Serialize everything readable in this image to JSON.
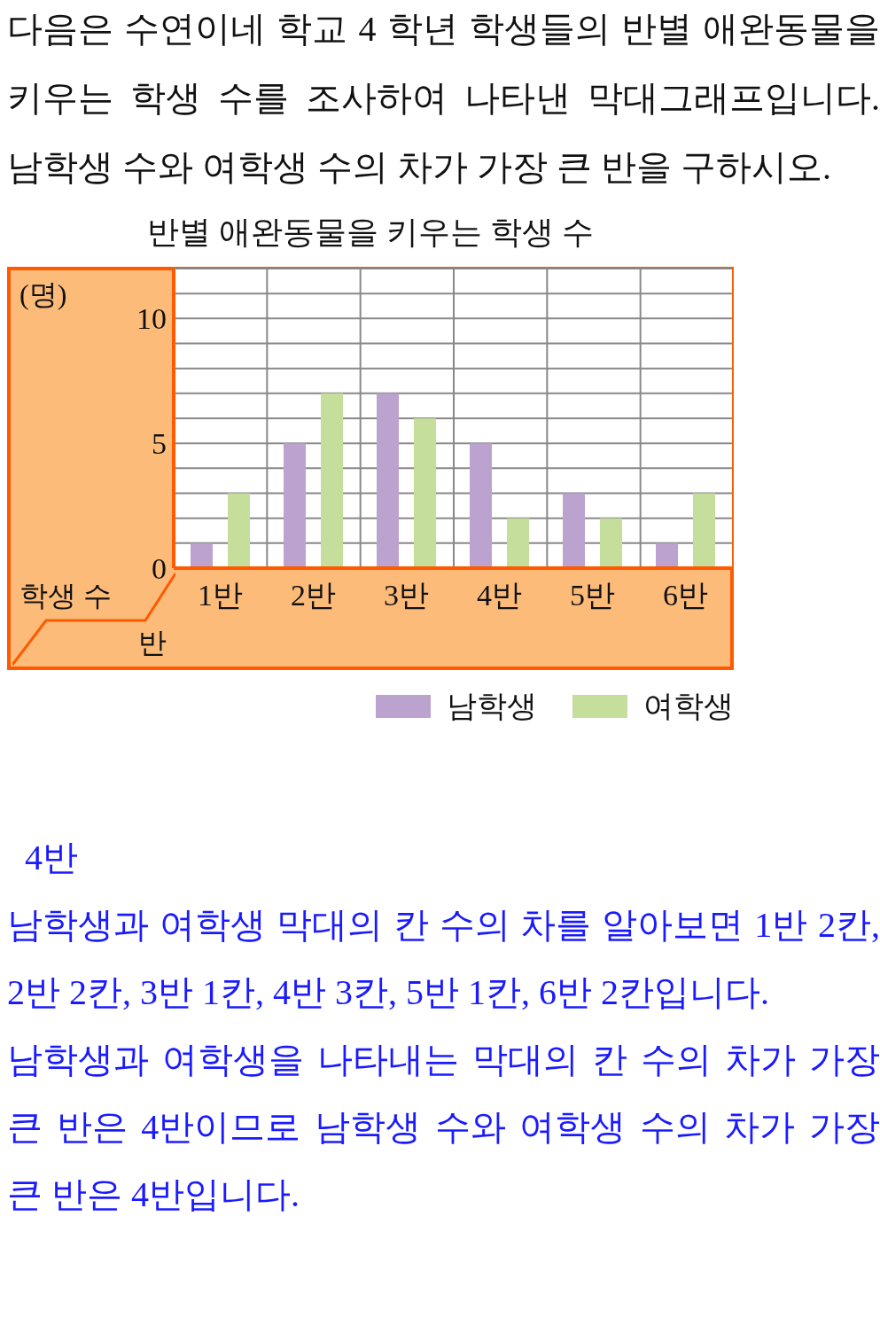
{
  "chart_data": {
    "type": "bar",
    "title": "반별 애완동물을 키우는 학생 수",
    "ylabel": "(명)",
    "xlabel": "반",
    "annotations": [
      "다음은 수연이네 학교 4 학년 학생들의 반별 애완동물을 키우는 학생 수를 조사하여 나타낸 막대그래프입니다. 남학생 수와 여학생 수의 차가 가장 큰 반을 구하시오.",
      "학생 수",
      "4반",
      "남학생과 여학생 막대의 칸 수의 차를 알아보면 1반 2칸, 2반 2칸, 3반 1칸, 4반 3칸, 5반 1칸, 6반 2칸입니다.",
      "남학생과 여학생을 나타내는 막대의 칸 수의 차가 가장 큰 반은 4반이므로 남학생 수와 여학생 수의 차가 가장 큰 반은 4반입니다."
    ],
    "categories": [
      "1반",
      "2반",
      "3반",
      "4반",
      "5반",
      "6반"
    ],
    "series": [
      {
        "name": "남학생",
        "color": "#bba2cf",
        "values": [
          1,
          5,
          7,
          5,
          3,
          1
        ]
      },
      {
        "name": "여학생",
        "color": "#c5de9c",
        "values": [
          3,
          7,
          6,
          2,
          2,
          3
        ]
      }
    ],
    "ylim": [
      0,
      12
    ],
    "yticks": [
      0,
      {
        "value": 1,
        "label": null
      },
      {
        "value": 2,
        "label": null
      },
      {
        "value": 3,
        "label": null
      },
      {
        "value": 4,
        "label": null
      },
      5,
      {
        "value": 6,
        "label": null
      },
      {
        "value": 7,
        "label": null
      },
      {
        "value": 8,
        "label": null
      },
      {
        "value": 9,
        "label": null
      },
      10,
      {
        "value": 11,
        "label": null
      },
      {
        "value": 12,
        "label": null
      }
    ],
    "grid": true,
    "legend": "bottom right"
  }
}
